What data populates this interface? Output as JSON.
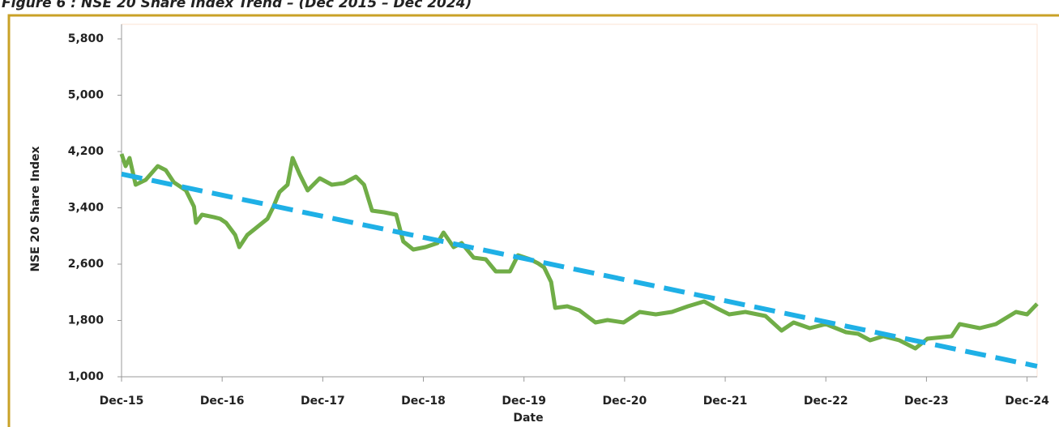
{
  "chart_data": {
    "type": "line",
    "title": "Figure 6 : NSE 20 Share Index Trend – (Dec 2015 – Dec 2024)",
    "x_label": "Date",
    "y_label": "NSE 20 Share Index",
    "xlim": [
      2015.92,
      2025.02
    ],
    "xticks": [
      {
        "value": 2015.92,
        "label": "Dec-15"
      },
      {
        "value": 2016.92,
        "label": "Dec-16"
      },
      {
        "value": 2017.92,
        "label": "Dec-17"
      },
      {
        "value": 2018.92,
        "label": "Dec-18"
      },
      {
        "value": 2019.92,
        "label": "Dec-19"
      },
      {
        "value": 2020.92,
        "label": "Dec-20"
      },
      {
        "value": 2021.92,
        "label": "Dec-21"
      },
      {
        "value": 2022.92,
        "label": "Dec-22"
      },
      {
        "value": 2023.92,
        "label": "Dec-23"
      },
      {
        "value": 2024.92,
        "label": "Dec-24"
      }
    ],
    "ylim": [
      1000,
      5800
    ],
    "yticks": [
      {
        "value": 1000,
        "label": "1,000"
      },
      {
        "value": 1800,
        "label": "1,800"
      },
      {
        "value": 2600,
        "label": "2,600"
      },
      {
        "value": 3400,
        "label": "3,400"
      },
      {
        "value": 4200,
        "label": "4,200"
      },
      {
        "value": 5000,
        "label": "5,000"
      },
      {
        "value": 5800,
        "label": "5,800"
      }
    ],
    "grid": false,
    "series": [
      {
        "color": "#70ad47",
        "dashed": false,
        "x": [
          2015.92,
          2015.96,
          2016.0,
          2016.06,
          2016.16,
          2016.28,
          2016.36,
          2016.44,
          2016.56,
          2016.64,
          2016.66,
          2016.72,
          2016.84,
          2016.9,
          2016.96,
          2017.05,
          2017.09,
          2017.17,
          2017.25,
          2017.37,
          2017.43,
          2017.49,
          2017.57,
          2017.62,
          2017.69,
          2017.77,
          2017.89,
          2018.01,
          2018.13,
          2018.25,
          2018.33,
          2018.41,
          2018.53,
          2018.65,
          2018.72,
          2018.82,
          2018.94,
          2019.06,
          2019.12,
          2019.22,
          2019.3,
          2019.42,
          2019.54,
          2019.64,
          2019.78,
          2019.86,
          2019.98,
          2020.06,
          2020.12,
          2020.19,
          2020.23,
          2020.35,
          2020.47,
          2020.63,
          2020.75,
          2020.91,
          2021.07,
          2021.23,
          2021.39,
          2021.55,
          2021.71,
          2021.83,
          2021.96,
          2022.12,
          2022.32,
          2022.48,
          2022.6,
          2022.76,
          2022.92,
          2023.12,
          2023.24,
          2023.36,
          2023.49,
          2023.65,
          2023.81,
          2023.93,
          2024.17,
          2024.25,
          2024.45,
          2024.61,
          2024.81,
          2024.92,
          2025.02
        ],
        "values": [
          4165,
          3993,
          4108,
          3728,
          3797,
          3993,
          3935,
          3762,
          3647,
          3417,
          3187,
          3302,
          3267,
          3245,
          3187,
          3014,
          2842,
          3014,
          3106,
          3245,
          3417,
          3624,
          3728,
          4108,
          3878,
          3647,
          3820,
          3728,
          3751,
          3843,
          3728,
          3360,
          3337,
          3302,
          2922,
          2807,
          2842,
          2899,
          3049,
          2842,
          2899,
          2692,
          2669,
          2496,
          2496,
          2727,
          2669,
          2612,
          2554,
          2347,
          1978,
          2001,
          1944,
          1771,
          1806,
          1771,
          1921,
          1886,
          1921,
          2001,
          2070,
          1978,
          1886,
          1921,
          1863,
          1656,
          1771,
          1691,
          1748,
          1633,
          1610,
          1518,
          1576,
          1518,
          1403,
          1541,
          1576,
          1748,
          1691,
          1748,
          1921,
          1886,
          2036
        ]
      },
      {
        "color": "#1fb0e6",
        "dashed": true,
        "x": [
          2015.92,
          2025.02
        ],
        "values": [
          3880,
          1150
        ]
      }
    ]
  }
}
